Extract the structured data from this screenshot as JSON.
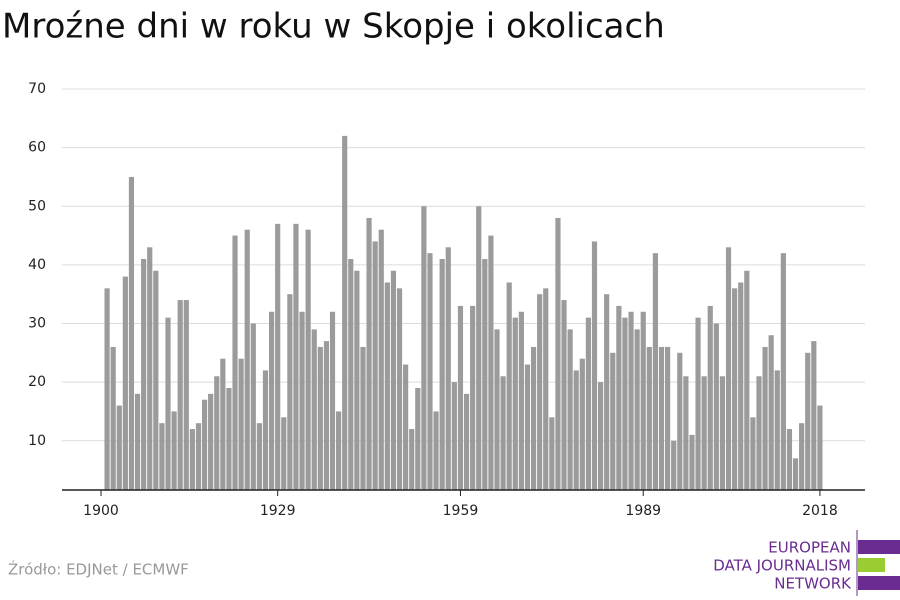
{
  "chart_data": {
    "type": "bar",
    "title": "Mroźne dni w roku w Skopje i okolicach",
    "source": "Źródło: EDJNet / ECMWF",
    "logo": [
      "EUROPEAN",
      "DATA JOURNALISM",
      "NETWORK"
    ],
    "x": [
      1901,
      1902,
      1903,
      1904,
      1905,
      1906,
      1907,
      1908,
      1909,
      1910,
      1911,
      1912,
      1913,
      1914,
      1915,
      1916,
      1917,
      1918,
      1919,
      1920,
      1921,
      1922,
      1923,
      1924,
      1925,
      1926,
      1927,
      1928,
      1929,
      1930,
      1931,
      1932,
      1933,
      1934,
      1935,
      1936,
      1937,
      1938,
      1939,
      1940,
      1941,
      1942,
      1943,
      1944,
      1945,
      1946,
      1947,
      1948,
      1949,
      1950,
      1951,
      1952,
      1953,
      1954,
      1955,
      1956,
      1957,
      1958,
      1959,
      1960,
      1961,
      1962,
      1963,
      1964,
      1965,
      1966,
      1967,
      1968,
      1969,
      1970,
      1971,
      1972,
      1973,
      1974,
      1975,
      1976,
      1977,
      1978,
      1979,
      1980,
      1981,
      1982,
      1983,
      1984,
      1985,
      1986,
      1987,
      1988,
      1989,
      1990,
      1991,
      1992,
      1993,
      1994,
      1995,
      1996,
      1997,
      1998,
      1999,
      2000,
      2001,
      2002,
      2003,
      2004,
      2005,
      2006,
      2007,
      2008,
      2009,
      2010,
      2011,
      2012,
      2013,
      2014,
      2015,
      2016,
      2017,
      2018
    ],
    "values": [
      36,
      26,
      16,
      38,
      55,
      18,
      41,
      43,
      39,
      13,
      31,
      15,
      34,
      34,
      12,
      13,
      17,
      18,
      21,
      24,
      19,
      45,
      24,
      46,
      30,
      13,
      22,
      32,
      47,
      14,
      35,
      47,
      32,
      46,
      29,
      26,
      27,
      32,
      15,
      62,
      41,
      39,
      26,
      48,
      44,
      46,
      37,
      39,
      36,
      23,
      12,
      19,
      50,
      42,
      15,
      41,
      43,
      20,
      33,
      18,
      33,
      50,
      41,
      45,
      29,
      21,
      37,
      31,
      32,
      23,
      26,
      35,
      36,
      14,
      48,
      34,
      29,
      22,
      24,
      31,
      44,
      20,
      35,
      25,
      33,
      31,
      32,
      29,
      32,
      26,
      42,
      26,
      26,
      10,
      25,
      21,
      11,
      31,
      21,
      33,
      30,
      21,
      43,
      36,
      37,
      39,
      14,
      21,
      26,
      28,
      22,
      42,
      12,
      7,
      13,
      25,
      27,
      16
    ],
    "color": "#9b9b9b",
    "xlim": [
      1893.6,
      2025.4
    ],
    "xticks": [
      1900,
      1929,
      1959,
      1989,
      2018
    ],
    "ylim": [
      1.6,
      70
    ],
    "yticks": [
      10,
      20,
      30,
      40,
      50,
      60,
      70
    ],
    "grid": true
  }
}
